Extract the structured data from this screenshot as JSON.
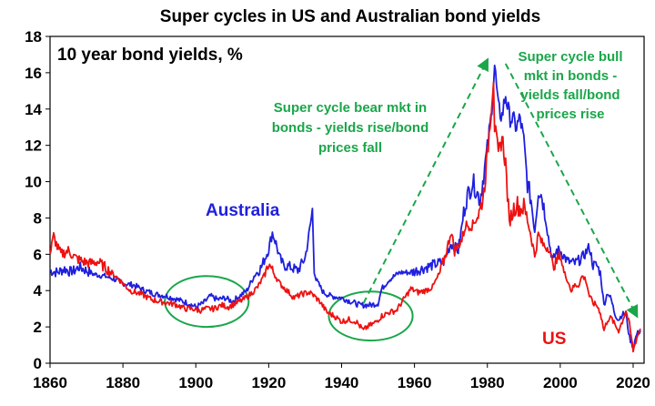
{
  "chart_data": {
    "type": "line",
    "title": "Super cycles in US and Australian bond yields",
    "subtitle": "10 year bond yields, %",
    "xlim": [
      1860,
      2023
    ],
    "ylim": [
      0,
      18
    ],
    "xticks": [
      "1860",
      "1880",
      "1900",
      "1920",
      "1940",
      "1960",
      "1980",
      "2000",
      "2020"
    ],
    "yticks": [
      "0",
      "2",
      "4",
      "6",
      "8",
      "10",
      "12",
      "14",
      "16",
      "18"
    ],
    "grid": false,
    "colors": {
      "australia": "#1f1fe0",
      "us": "#ee1111",
      "annotation": "#1aa64a"
    },
    "series": [
      {
        "name": "Australia",
        "label_text": "Australia",
        "points": [
          [
            1860,
            5.1
          ],
          [
            1862,
            5.0
          ],
          [
            1864,
            5.2
          ],
          [
            1866,
            5.0
          ],
          [
            1868,
            5.3
          ],
          [
            1870,
            5.1
          ],
          [
            1872,
            4.9
          ],
          [
            1875,
            4.8
          ],
          [
            1878,
            4.6
          ],
          [
            1880,
            4.4
          ],
          [
            1883,
            4.3
          ],
          [
            1886,
            4.0
          ],
          [
            1889,
            3.8
          ],
          [
            1892,
            3.7
          ],
          [
            1895,
            3.5
          ],
          [
            1898,
            3.3
          ],
          [
            1900,
            3.1
          ],
          [
            1902,
            3.3
          ],
          [
            1904,
            3.7
          ],
          [
            1906,
            3.5
          ],
          [
            1908,
            3.6
          ],
          [
            1910,
            3.4
          ],
          [
            1912,
            3.7
          ],
          [
            1914,
            4.0
          ],
          [
            1916,
            4.8
          ],
          [
            1918,
            5.3
          ],
          [
            1920,
            6.3
          ],
          [
            1921,
            7.2
          ],
          [
            1922,
            6.6
          ],
          [
            1923,
            5.8
          ],
          [
            1924,
            5.4
          ],
          [
            1926,
            5.3
          ],
          [
            1928,
            5.1
          ],
          [
            1930,
            5.8
          ],
          [
            1931,
            7.0
          ],
          [
            1932,
            8.4
          ],
          [
            1932.5,
            5.2
          ],
          [
            1933,
            4.6
          ],
          [
            1935,
            3.9
          ],
          [
            1937,
            3.7
          ],
          [
            1940,
            3.6
          ],
          [
            1945,
            3.2
          ],
          [
            1948,
            3.2
          ],
          [
            1950,
            3.3
          ],
          [
            1951,
            4.1
          ],
          [
            1953,
            4.6
          ],
          [
            1956,
            5.0
          ],
          [
            1959,
            5.0
          ],
          [
            1962,
            5.2
          ],
          [
            1965,
            5.4
          ],
          [
            1968,
            5.6
          ],
          [
            1970,
            6.6
          ],
          [
            1972,
            6.2
          ],
          [
            1974,
            8.9
          ],
          [
            1976,
            10.0
          ],
          [
            1978,
            9.0
          ],
          [
            1980,
            11.8
          ],
          [
            1981,
            13.5
          ],
          [
            1982,
            16.4
          ],
          [
            1983,
            14.0
          ],
          [
            1984,
            13.6
          ],
          [
            1985,
            14.8
          ],
          [
            1986,
            13.6
          ],
          [
            1987,
            13.4
          ],
          [
            1988,
            13.0
          ],
          [
            1989,
            13.5
          ],
          [
            1990,
            12.2
          ],
          [
            1991,
            9.9
          ],
          [
            1992,
            9.0
          ],
          [
            1993,
            7.3
          ],
          [
            1994,
            9.6
          ],
          [
            1995,
            9.2
          ],
          [
            1996,
            8.0
          ],
          [
            1997,
            6.6
          ],
          [
            1998,
            5.6
          ],
          [
            1999,
            6.2
          ],
          [
            2000,
            6.2
          ],
          [
            2002,
            5.6
          ],
          [
            2004,
            5.5
          ],
          [
            2006,
            5.8
          ],
          [
            2008,
            6.4
          ],
          [
            2009,
            5.4
          ],
          [
            2010,
            5.4
          ],
          [
            2011,
            5.0
          ],
          [
            2012,
            3.2
          ],
          [
            2013,
            3.9
          ],
          [
            2014,
            3.5
          ],
          [
            2015,
            2.7
          ],
          [
            2016,
            2.4
          ],
          [
            2017,
            2.7
          ],
          [
            2018,
            2.7
          ],
          [
            2019,
            1.4
          ],
          [
            2020,
            0.9
          ],
          [
            2021,
            1.6
          ],
          [
            2022,
            1.8
          ]
        ]
      },
      {
        "name": "US",
        "label_text": "US",
        "points": [
          [
            1860,
            6.0
          ],
          [
            1861,
            7.0
          ],
          [
            1862,
            6.4
          ],
          [
            1863,
            6.0
          ],
          [
            1865,
            6.2
          ],
          [
            1867,
            5.8
          ],
          [
            1869,
            5.6
          ],
          [
            1871,
            5.5
          ],
          [
            1873,
            5.6
          ],
          [
            1875,
            5.3
          ],
          [
            1878,
            4.8
          ],
          [
            1880,
            4.4
          ],
          [
            1882,
            4.0
          ],
          [
            1885,
            3.8
          ],
          [
            1888,
            3.5
          ],
          [
            1890,
            3.4
          ],
          [
            1893,
            3.3
          ],
          [
            1895,
            3.2
          ],
          [
            1897,
            3.0
          ],
          [
            1899,
            3.0
          ],
          [
            1901,
            2.9
          ],
          [
            1903,
            3.0
          ],
          [
            1905,
            3.0
          ],
          [
            1907,
            3.2
          ],
          [
            1909,
            3.1
          ],
          [
            1911,
            3.3
          ],
          [
            1913,
            3.5
          ],
          [
            1915,
            3.8
          ],
          [
            1917,
            4.2
          ],
          [
            1919,
            4.9
          ],
          [
            1920,
            5.5
          ],
          [
            1921,
            5.1
          ],
          [
            1923,
            4.4
          ],
          [
            1925,
            4.0
          ],
          [
            1927,
            3.6
          ],
          [
            1929,
            3.8
          ],
          [
            1931,
            3.9
          ],
          [
            1932,
            3.8
          ],
          [
            1934,
            3.4
          ],
          [
            1936,
            2.8
          ],
          [
            1938,
            2.6
          ],
          [
            1940,
            2.3
          ],
          [
            1942,
            2.4
          ],
          [
            1944,
            2.3
          ],
          [
            1946,
            1.8
          ],
          [
            1947,
            2.0
          ],
          [
            1949,
            2.2
          ],
          [
            1951,
            2.6
          ],
          [
            1953,
            2.8
          ],
          [
            1955,
            2.9
          ],
          [
            1957,
            3.5
          ],
          [
            1959,
            4.1
          ],
          [
            1961,
            3.9
          ],
          [
            1963,
            4.0
          ],
          [
            1965,
            4.2
          ],
          [
            1967,
            5.0
          ],
          [
            1969,
            6.3
          ],
          [
            1970,
            7.3
          ],
          [
            1971,
            6.2
          ],
          [
            1973,
            6.8
          ],
          [
            1974,
            7.6
          ],
          [
            1976,
            7.6
          ],
          [
            1978,
            8.4
          ],
          [
            1979,
            9.4
          ],
          [
            1980,
            11.4
          ],
          [
            1981,
            13.9
          ],
          [
            1981.7,
            15.8
          ],
          [
            1982,
            13.0
          ],
          [
            1983,
            11.4
          ],
          [
            1984,
            12.5
          ],
          [
            1985,
            11.0
          ],
          [
            1986,
            7.7
          ],
          [
            1987,
            8.4
          ],
          [
            1988,
            8.8
          ],
          [
            1989,
            8.5
          ],
          [
            1990,
            8.6
          ],
          [
            1991,
            7.9
          ],
          [
            1992,
            7.0
          ],
          [
            1993,
            5.9
          ],
          [
            1994,
            7.1
          ],
          [
            1995,
            6.6
          ],
          [
            1996,
            6.4
          ],
          [
            1997,
            6.4
          ],
          [
            1998,
            5.3
          ],
          [
            1999,
            5.6
          ],
          [
            2000,
            6.0
          ],
          [
            2001,
            5.0
          ],
          [
            2002,
            4.6
          ],
          [
            2003,
            4.0
          ],
          [
            2004,
            4.3
          ],
          [
            2005,
            4.3
          ],
          [
            2006,
            4.8
          ],
          [
            2007,
            4.6
          ],
          [
            2008,
            3.7
          ],
          [
            2009,
            3.3
          ],
          [
            2010,
            3.2
          ],
          [
            2011,
            2.8
          ],
          [
            2012,
            1.8
          ],
          [
            2013,
            2.4
          ],
          [
            2014,
            2.5
          ],
          [
            2015,
            2.1
          ],
          [
            2016,
            1.8
          ],
          [
            2017,
            2.3
          ],
          [
            2018,
            2.9
          ],
          [
            2019,
            2.1
          ],
          [
            2020,
            0.7
          ],
          [
            2021,
            1.4
          ],
          [
            2022,
            1.9
          ]
        ]
      }
    ],
    "annotations": [
      {
        "lines": [
          "Super cycle bear mkt in",
          "bonds - yields rise/bond",
          "prices fall"
        ]
      },
      {
        "lines": [
          "Super cycle bull",
          "mkt in bonds -",
          "yields fall/bond",
          "prices rise"
        ]
      }
    ],
    "trend_arrows": [
      {
        "from": [
          1946,
          3.3
        ],
        "to": [
          1980,
          16.7
        ]
      },
      {
        "from": [
          1985,
          16.5
        ],
        "to": [
          2021,
          2.6
        ]
      }
    ],
    "circled_regions": [
      {
        "center": [
          1903,
          3.4
        ],
        "radius": [
          11.5,
          1.4
        ]
      },
      {
        "center": [
          1948,
          2.6
        ],
        "radius": [
          11.5,
          1.35
        ]
      }
    ]
  }
}
